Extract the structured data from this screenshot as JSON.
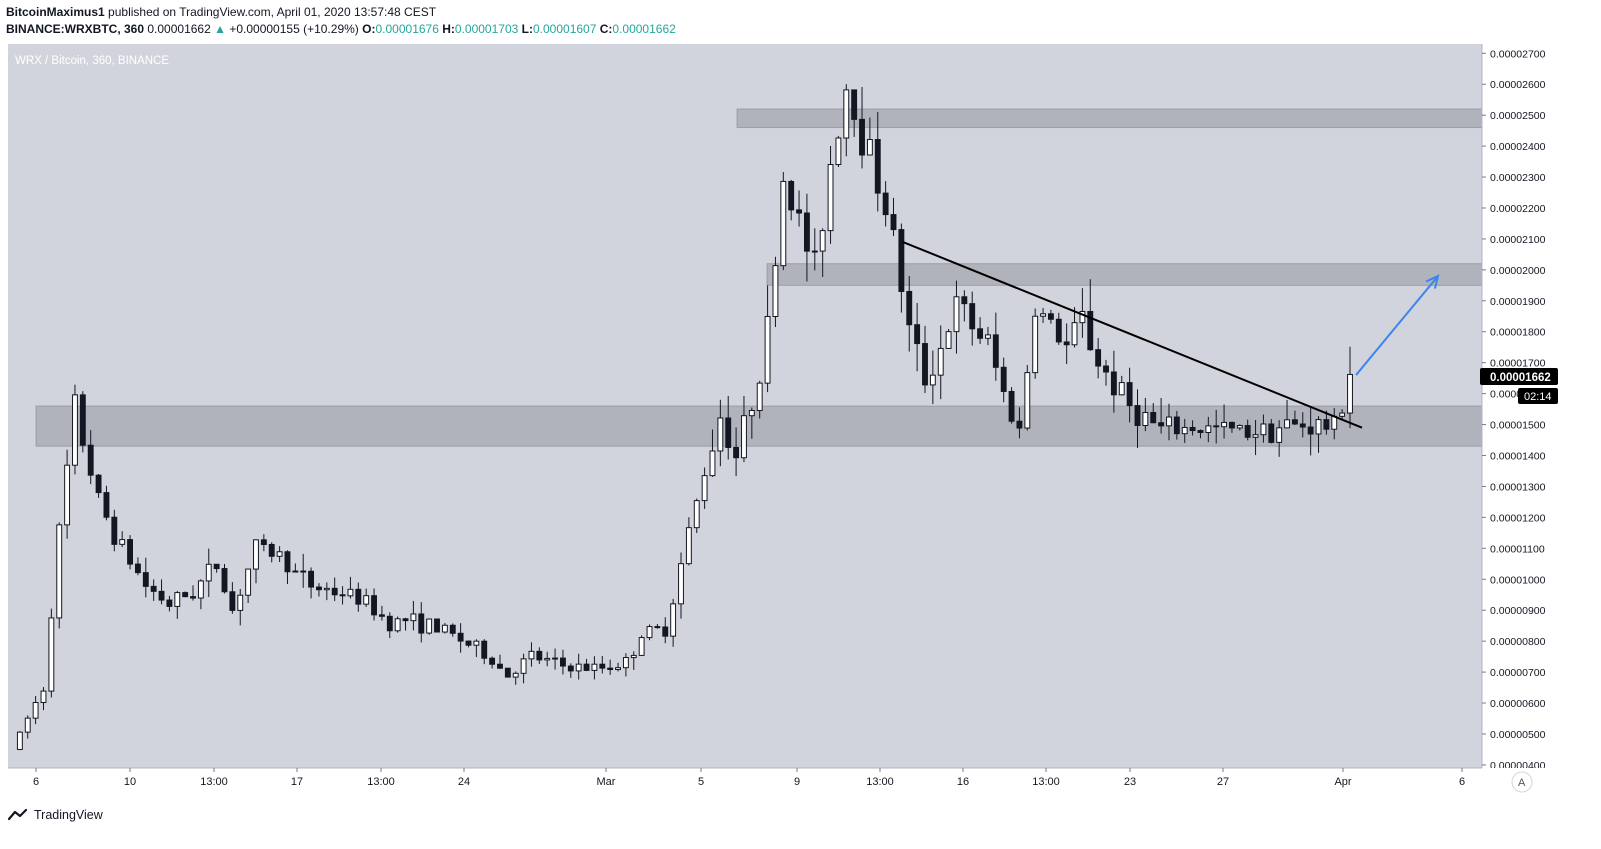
{
  "header": {
    "publisher": "BitcoinMaximus1",
    "published_text": "published on TradingView.com, April 01, 2020 13:57:48 CEST",
    "symbol": "BINANCE:WRXBTC, 360",
    "last": "0.00001662",
    "change": "+0.00000155 (+10.29%)",
    "o_label": "O:",
    "o_value": "0.00001676",
    "h_label": "H:",
    "h_value": "0.00001703",
    "l_label": "L:",
    "l_value": "0.00001607",
    "c_label": "C:",
    "c_value": "0.00001662"
  },
  "chart_title": "WRX / Bitcoin, 360, BINANCE",
  "price_badge": "0.00001662",
  "countdown_badge": "02:14",
  "scale_mode_button": "A",
  "footer": {
    "brand": "TradingView"
  },
  "colors": {
    "plot_bg": "#d1d4dc",
    "zone": "#9598a1",
    "candle_up": "#ffffff",
    "candle_down": "#131722",
    "trendline": "#000000",
    "arrow": "#3d85f0",
    "teal": "#26a69a"
  },
  "chart_data": {
    "type": "candlestick",
    "title": "WRX / Bitcoin, 360, BINANCE",
    "ylim": [
      3.9e-06,
      2.73e-05
    ],
    "y_ticks": [
      "0.00002700",
      "0.00002600",
      "0.00002500",
      "0.00002400",
      "0.00002300",
      "0.00002200",
      "0.00002100",
      "0.00002000",
      "0.00001900",
      "0.00001800",
      "0.00001700",
      "0.00001600",
      "0.00001500",
      "0.00001400",
      "0.00001300",
      "0.00001200",
      "0.00001100",
      "0.00001000",
      "0.00000900",
      "0.00000800",
      "0.00000700",
      "0.00000600",
      "0.00000500",
      "0.00000400"
    ],
    "x_ticks": [
      "6",
      "10",
      "13:00",
      "17",
      "13:00",
      "24",
      "Mar",
      "5",
      "9",
      "13:00",
      "16",
      "13:00",
      "23",
      "27",
      "Apr",
      "6"
    ],
    "zones": [
      {
        "low": 1.43e-05,
        "high": 1.56e-05
      },
      {
        "low": 1.95e-05,
        "high": 2.02e-05
      },
      {
        "low": 2.46e-05,
        "high": 2.52e-05
      }
    ],
    "trendline": {
      "from": 2.09e-05,
      "to": 1.49e-05
    },
    "projection": {
      "from": 1.66e-05,
      "to": 1.98e-05
    },
    "last_price": 1.662e-05,
    "path": [
      [
        0,
        4.5
      ],
      [
        4,
        6.5
      ],
      [
        6,
        11.5
      ],
      [
        8,
        15.5
      ],
      [
        11,
        12.5
      ],
      [
        14,
        11.0
      ],
      [
        17,
        9.8
      ],
      [
        20,
        9.2
      ],
      [
        23,
        9.6
      ],
      [
        26,
        10.5
      ],
      [
        28,
        9.0
      ],
      [
        31,
        11.0
      ],
      [
        34,
        10.8
      ],
      [
        36,
        10.2
      ],
      [
        38,
        9.8
      ],
      [
        41,
        9.6
      ],
      [
        44,
        9.4
      ],
      [
        46,
        9.0
      ],
      [
        48,
        8.6
      ],
      [
        50,
        8.7
      ],
      [
        53,
        8.5
      ],
      [
        56,
        8.2
      ],
      [
        60,
        7.6
      ],
      [
        63,
        6.9
      ],
      [
        66,
        7.5
      ],
      [
        70,
        7.2
      ],
      [
        74,
        7.1
      ],
      [
        78,
        7.3
      ],
      [
        80,
        8.2
      ],
      [
        83,
        8.4
      ],
      [
        86,
        11.5
      ],
      [
        88,
        13.5
      ],
      [
        90,
        15.3
      ],
      [
        92,
        14.0
      ],
      [
        94,
        15.8
      ],
      [
        96,
        18.0
      ],
      [
        98,
        23.0
      ],
      [
        100,
        21.5
      ],
      [
        102,
        20.0
      ],
      [
        104,
        23.5
      ],
      [
        106,
        26.0
      ],
      [
        108,
        24.5
      ],
      [
        110,
        23.0
      ],
      [
        112,
        21.0
      ],
      [
        114,
        18.0
      ],
      [
        116,
        16.5
      ],
      [
        118,
        17.5
      ],
      [
        120,
        18.8
      ],
      [
        122,
        18.2
      ],
      [
        124,
        17.6
      ],
      [
        126,
        16.0
      ],
      [
        128,
        14.8
      ],
      [
        130,
        18.8
      ],
      [
        132,
        18.2
      ],
      [
        134,
        17.5
      ],
      [
        136,
        18.4
      ],
      [
        138,
        17.0
      ],
      [
        140,
        16.3
      ],
      [
        142,
        15.6
      ],
      [
        144,
        15.2
      ],
      [
        146,
        14.8
      ],
      [
        150,
        14.9
      ],
      [
        155,
        14.8
      ],
      [
        160,
        14.9
      ],
      [
        165,
        15.0
      ],
      [
        168,
        14.9
      ],
      [
        170,
        16.6
      ]
    ]
  }
}
